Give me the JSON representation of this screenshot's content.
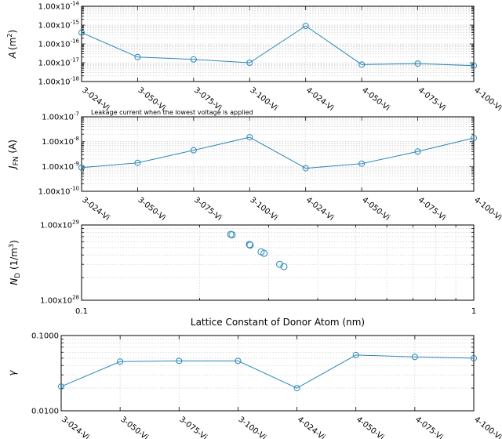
{
  "chart_data": [
    {
      "id": "area",
      "type": "line",
      "scale": "categorical-log",
      "ylabel": "A (m²)",
      "ylabel_parts": {
        "symbol": "A",
        "unit": "(m",
        "sup": "2",
        "close": ")"
      },
      "categories": [
        "3-024-Vi",
        "3-050-Vi",
        "3-075-Vi",
        "3-100-Vi",
        "4-024-Vi",
        "4-050-Vi",
        "4-075-Vi",
        "4-100-Vi"
      ],
      "values": [
        4e-16,
        2e-17,
        1.5e-17,
        1e-17,
        9e-16,
        8e-18,
        9e-18,
        7e-18
      ],
      "ylim": [
        1e-18,
        1e-14
      ],
      "yticks": [
        {
          "mant": "1.00x10",
          "exp": "-18"
        },
        {
          "mant": "1.00x10",
          "exp": "-17"
        },
        {
          "mant": "1.00x10",
          "exp": "-16"
        },
        {
          "mant": "1.00x10",
          "exp": "-15"
        },
        {
          "mant": "1.00x10",
          "exp": "-14"
        }
      ],
      "grid": true
    },
    {
      "id": "jfn",
      "type": "line",
      "scale": "categorical-log",
      "ylabel": "J FN (A)",
      "ylabel_parts": {
        "symbol": "J",
        "sub": "FN",
        "unit": " (A)"
      },
      "annotation": "Leakage current when the lowest voltage is applied",
      "categories": [
        "3-024-Vi",
        "3-050-Vi",
        "3-075-Vi",
        "3-100-Vi",
        "4-024-Vi",
        "4-050-Vi",
        "4-075-Vi",
        "4-100-Vi"
      ],
      "values": [
        9e-10,
        1.4e-09,
        4.5e-09,
        1.5e-08,
        8.5e-10,
        1.3e-09,
        4e-09,
        1.4e-08
      ],
      "ylim": [
        1e-10,
        1e-07
      ],
      "yticks": [
        {
          "mant": "1.00x10",
          "exp": "-10"
        },
        {
          "mant": "1.00x10",
          "exp": "-9"
        },
        {
          "mant": "1.00x10",
          "exp": "-8"
        },
        {
          "mant": "1.00x10",
          "exp": "-7"
        }
      ],
      "grid": true
    },
    {
      "id": "nd",
      "type": "scatter",
      "scale": "loglog",
      "ylabel": "N D (1/m³)",
      "ylabel_parts": {
        "symbol": "N",
        "sub": "D",
        "unit": " (1/m",
        "sup": "3",
        "close": ")"
      },
      "xlabel": "Lattice Constant of Donor Atom  (nm)",
      "x": [
        0.24,
        0.242,
        0.268,
        0.269,
        0.287,
        0.292,
        0.32,
        0.328
      ],
      "y": [
        7.5e+28,
        7.4e+28,
        5.5e+28,
        5.4e+28,
        4.4e+28,
        4.2e+28,
        3e+28,
        2.8e+28
      ],
      "xlim": [
        0.1,
        1
      ],
      "ylim": [
        1e+28,
        1e+29
      ],
      "xticks": [
        "0.1",
        "1"
      ],
      "yticks": [
        {
          "mant": "1.00x10",
          "exp": "28"
        },
        {
          "mant": "1.00x10",
          "exp": "29"
        }
      ],
      "grid": true
    },
    {
      "id": "gamma",
      "type": "line",
      "scale": "categorical-log",
      "ylabel": "γ",
      "ylabel_parts": {
        "symbol": "γ"
      },
      "categories": [
        "3-024-Vi",
        "3-050-Vi",
        "3-075-Vi",
        "3-100-Vi",
        "4-024-Vi",
        "4-050-Vi",
        "4-075-Vi",
        "4-100-Vi"
      ],
      "values": [
        0.021,
        0.045,
        0.046,
        0.046,
        0.02,
        0.055,
        0.052,
        0.05
      ],
      "ylim": [
        0.01,
        0.1
      ],
      "yticks": [
        {
          "mant": "0.0100",
          "exp": ""
        },
        {
          "mant": "0.1000",
          "exp": ""
        }
      ],
      "grid": true
    }
  ],
  "colors": {
    "series": "#2a88b8",
    "axis": "#000000",
    "grid": "#c8c8c8"
  }
}
